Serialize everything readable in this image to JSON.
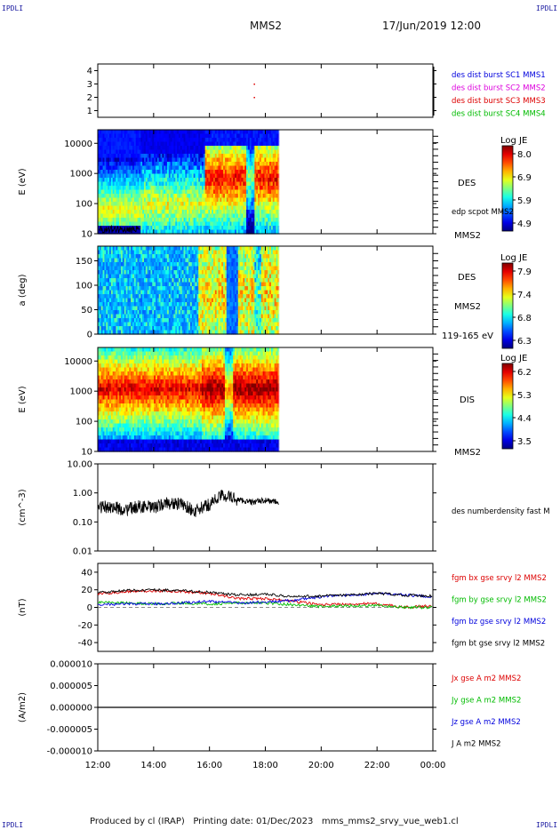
{
  "corner_labels": {
    "tl": "IPDLI",
    "tr": "IPDLI",
    "bl": "IPDLI",
    "br": "IPDLI"
  },
  "header": {
    "spacecraft": "MMS2",
    "datetime": "17/Jun/2019 12:00"
  },
  "footer": {
    "text": "Produced by cl (IRAP)   Printing date: 01/Dec/2023   mms_mms2_srvy_vue_web1.cl"
  },
  "time_axis": {
    "tick_labels": [
      "12:00",
      "14:00",
      "16:00",
      "18:00",
      "20:00",
      "22:00",
      "00:00"
    ],
    "hours": [
      12,
      14,
      16,
      18,
      20,
      22,
      24
    ],
    "range_hours": [
      12,
      24
    ],
    "data_end_hour": 18.5
  },
  "colors": {
    "blue": "#0000dd",
    "magenta": "#dd00dd",
    "red": "#dd0000",
    "green": "#00bb00",
    "black": "#000000"
  },
  "chart_data": [
    {
      "id": "burst",
      "type": "scatter",
      "yticks": [
        "1",
        "2",
        "3",
        "4"
      ],
      "ylim": [
        0.5,
        4.5
      ],
      "legend": [
        {
          "text": "des dist burst SC1 MMS1",
          "color": "blue"
        },
        {
          "text": "des dist burst SC2 MMS2",
          "color": "magenta"
        },
        {
          "text": "des dist burst SC3 MMS3",
          "color": "red"
        },
        {
          "text": "des dist burst SC4 MMS4",
          "color": "green"
        }
      ],
      "points": [
        {
          "x": 17.6,
          "y": 3,
          "color": "red"
        },
        {
          "x": 17.6,
          "y": 2,
          "color": "red"
        }
      ]
    },
    {
      "id": "des_energy",
      "type": "heatmap",
      "ylabel": "E (eV)",
      "yticks": [
        "10",
        "100",
        "1000",
        "10000"
      ],
      "ylim_log": [
        1,
        4.45
      ],
      "right_labels": [
        {
          "text": "DES"
        },
        {
          "text": "edp scpot MMS2"
        },
        {
          "text": "MMS2"
        }
      ],
      "colorbar": {
        "title": "Log JE",
        "ticks": [
          "8.0",
          "6.9",
          "5.9",
          "4.9"
        ]
      },
      "overlay_line": {
        "name": "edp scpot MMS2",
        "x_range": [
          12.05,
          13.5
        ],
        "value_ev": 14
      }
    },
    {
      "id": "des_pitch",
      "type": "heatmap",
      "ylabel": "a (deg)",
      "yticks": [
        "0",
        "50",
        "100",
        "150"
      ],
      "ylim": [
        0,
        180
      ],
      "right_labels": [
        {
          "text": "DES"
        },
        {
          "text": "MMS2"
        },
        {
          "text": "119-165 eV"
        }
      ],
      "colorbar": {
        "title": "Log JE",
        "ticks": [
          "7.9",
          "7.4",
          "6.8",
          "6.3"
        ]
      }
    },
    {
      "id": "dis_energy",
      "type": "heatmap",
      "ylabel": "E (eV)",
      "yticks": [
        "10",
        "100",
        "1000",
        "10000"
      ],
      "ylim_log": [
        1,
        4.45
      ],
      "right_labels": [
        {
          "text": "DIS"
        },
        {
          "text": "MMS2"
        }
      ],
      "colorbar": {
        "title": "Log JE",
        "ticks": [
          "6.2",
          "5.3",
          "4.4",
          "3.5"
        ]
      }
    },
    {
      "id": "density",
      "type": "line",
      "ylabel": "(cm^-3)",
      "yticks": [
        "0.01",
        "0.10",
        "1.00",
        "10.00"
      ],
      "ylim_log": [
        -2,
        1
      ],
      "series": [
        {
          "name": "des numberdensity fast M",
          "color": "black"
        }
      ],
      "x": [
        12.0,
        12.5,
        13.0,
        13.5,
        14.0,
        14.5,
        15.0,
        15.5,
        16.0,
        16.5,
        17.0,
        17.5,
        18.0,
        18.5
      ],
      "values": [
        0.32,
        0.33,
        0.25,
        0.35,
        0.3,
        0.45,
        0.4,
        0.22,
        0.4,
        0.85,
        0.58,
        0.48,
        0.55,
        0.47
      ]
    },
    {
      "id": "fgm",
      "type": "line",
      "ylabel": "(nT)",
      "yticks": [
        "-40",
        "-20",
        "0",
        "20",
        "40"
      ],
      "ylim": [
        -50,
        50
      ],
      "series": [
        {
          "name": "fgm bx gse srvy l2 MMS2",
          "color": "red",
          "x": [
            12,
            13,
            14,
            15,
            16,
            17,
            18,
            19,
            20,
            21,
            22,
            23,
            24
          ],
          "values": [
            15,
            18,
            19,
            18,
            16,
            10,
            10,
            7,
            3,
            4,
            4,
            0,
            2
          ]
        },
        {
          "name": "fgm by gse srvy l2 MMS2",
          "color": "green",
          "x": [
            12,
            13,
            14,
            15,
            16,
            17,
            18,
            19,
            20,
            21,
            22,
            23,
            24
          ],
          "values": [
            6,
            5,
            4,
            5,
            4,
            5,
            5,
            3,
            1,
            2,
            2,
            0,
            0
          ]
        },
        {
          "name": "fgm bz gse srvy l2 MMS2",
          "color": "blue",
          "x": [
            12,
            13,
            14,
            15,
            16,
            17,
            18,
            19,
            20,
            21,
            22,
            23,
            24
          ],
          "values": [
            3,
            4,
            4,
            5,
            7,
            5,
            6,
            8,
            12,
            14,
            16,
            14,
            12
          ]
        },
        {
          "name": "fgm bt gse srvy l2 MMS2",
          "color": "black",
          "x": [
            12,
            13,
            14,
            15,
            16,
            17,
            18,
            19,
            20,
            21,
            22,
            23,
            24
          ],
          "values": [
            17,
            19,
            20,
            19,
            17,
            14,
            15,
            12,
            13,
            14,
            16,
            14,
            13
          ]
        }
      ]
    },
    {
      "id": "current",
      "type": "line",
      "ylabel": "(A/m2)",
      "yticks": [
        "-0.000010",
        "-0.000005",
        "0.000000",
        "0.000005",
        "0.000010"
      ],
      "ylim": [
        -1e-05,
        1e-05
      ],
      "series": [
        {
          "name": "Jx gse A m2 MMS2",
          "color": "red"
        },
        {
          "name": "Jy gse A m2 MMS2",
          "color": "green"
        },
        {
          "name": "Jz gse A m2 MMS2",
          "color": "blue"
        },
        {
          "name": "J A m2 MMS2",
          "color": "black"
        }
      ],
      "x": [
        12,
        24
      ],
      "values": [
        0,
        0
      ]
    }
  ]
}
